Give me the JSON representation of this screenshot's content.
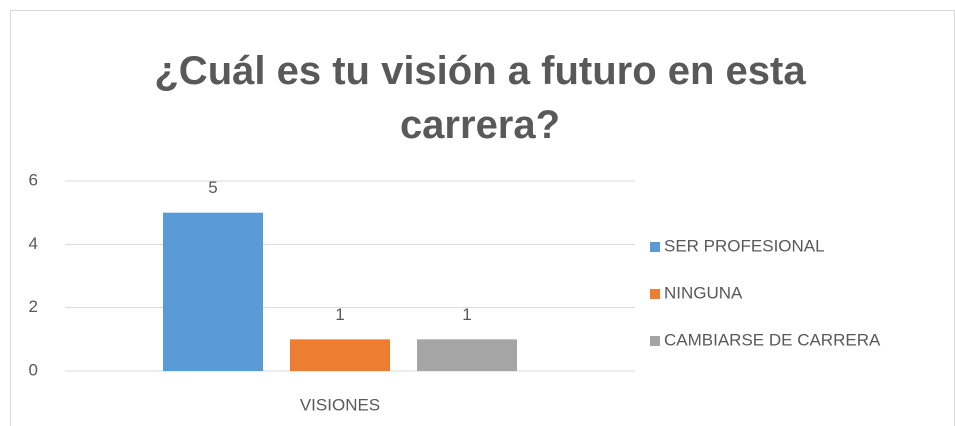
{
  "chart_data": {
    "type": "bar",
    "title": "¿Cuál es tu visión a futuro en esta carrera?",
    "categories": [
      "VISIONES"
    ],
    "series": [
      {
        "name": "SER PROFESIONAL",
        "color": "#5b9bd5",
        "values": [
          5
        ]
      },
      {
        "name": "NINGUNA",
        "color": "#ed7d31",
        "values": [
          1
        ]
      },
      {
        "name": "CAMBIARSE DE CARRERA",
        "color": "#a5a5a5",
        "values": [
          1
        ]
      }
    ],
    "ylim": [
      0,
      6
    ],
    "yticks": [
      0,
      2,
      4,
      6
    ],
    "grid": true,
    "legend": "right"
  }
}
